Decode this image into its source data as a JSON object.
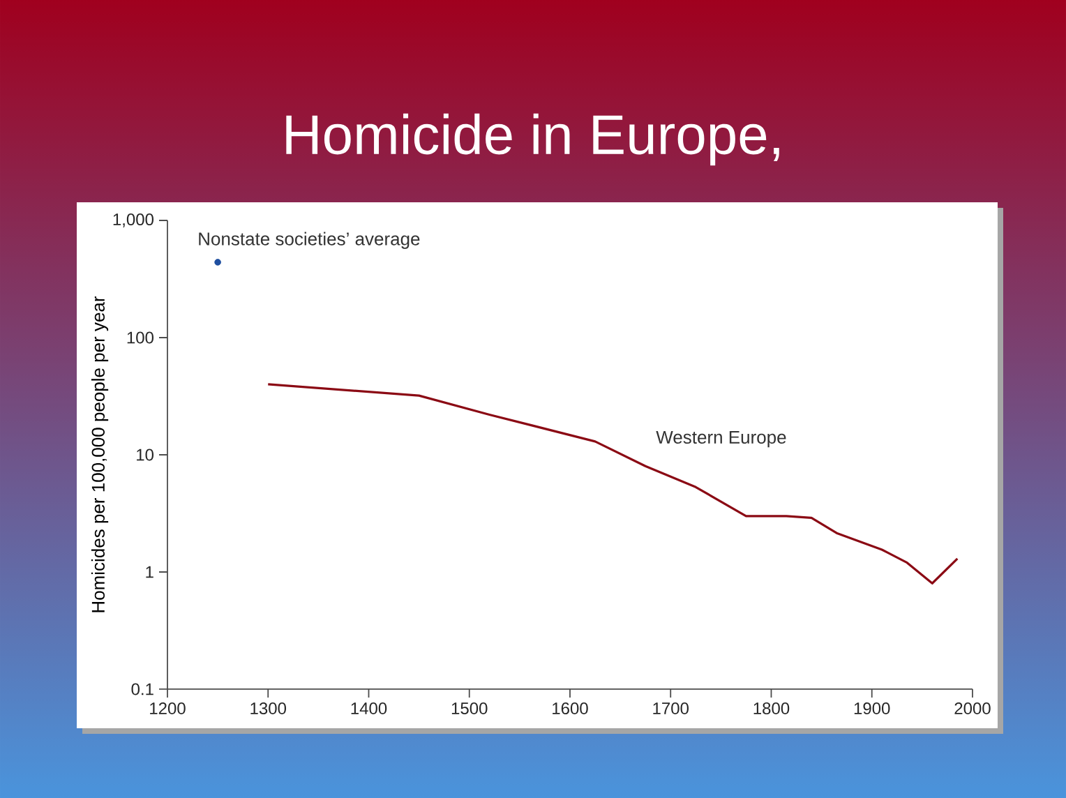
{
  "chart_data": {
    "type": "line",
    "title": "Homicide in Europe,",
    "ylabel": "Homicides per 100,000 people per year",
    "log": true,
    "xlim": [
      1200,
      2000
    ],
    "xticks": [
      1200,
      1300,
      1400,
      1500,
      1600,
      1700,
      1800,
      1900,
      2000
    ],
    "ylim": [
      0.1,
      1000
    ],
    "yticks": [
      0.1,
      1,
      10,
      100,
      {
        "value": 1000,
        "label": "1,000"
      }
    ],
    "series": [
      {
        "name": "Western Europe",
        "color": "#8b0a14",
        "x": [
          1300,
          1450,
          1520,
          1625,
          1675,
          1725,
          1775,
          1815,
          1840,
          1865,
          1910,
          1935,
          1960,
          1985
        ],
        "values": [
          40,
          32,
          22,
          13,
          8,
          5.3,
          3,
          3,
          2.9,
          2.15,
          1.55,
          1.2,
          0.8,
          1.3
        ]
      },
      {
        "name": "Nonstate societies’ average",
        "type": "scatter",
        "color": "#1f4fa0",
        "x": [
          1250
        ],
        "values": [
          440
        ]
      }
    ]
  }
}
